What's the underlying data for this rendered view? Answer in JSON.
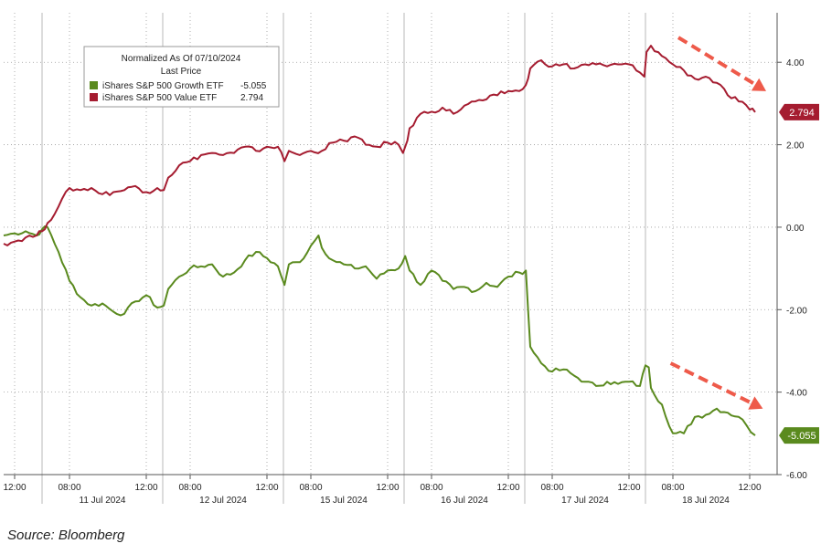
{
  "source": "Source: Bloomberg",
  "chart_data": {
    "type": "line",
    "legend": {
      "title_line1": "Normalized As Of 07/10/2024",
      "title_line2": "Last Price",
      "placement": "top-left"
    },
    "y_axis": {
      "side": "right",
      "ylim": [
        -6,
        5.2
      ],
      "ticks": [
        4,
        2,
        0,
        -2,
        -4,
        -6
      ],
      "tick_labels": [
        "4.00",
        "2.00",
        "0.00",
        "-2.00",
        "-4.00",
        "-6.00"
      ]
    },
    "x_axis": {
      "xlim": [
        0,
        70.5
      ],
      "ticks": [
        {
          "x": 1,
          "label": "12:00"
        },
        {
          "x": 6,
          "label": "08:00"
        },
        {
          "x": 13,
          "label": "12:00"
        },
        {
          "x": 17,
          "label": "08:00"
        },
        {
          "x": 24,
          "label": "12:00"
        },
        {
          "x": 28,
          "label": "08:00"
        },
        {
          "x": 35,
          "label": "12:00"
        },
        {
          "x": 39,
          "label": "08:00"
        },
        {
          "x": 46,
          "label": "12:00"
        },
        {
          "x": 50,
          "label": "08:00"
        },
        {
          "x": 57,
          "label": "12:00"
        },
        {
          "x": 61,
          "label": "08:00"
        },
        {
          "x": 68,
          "label": "12:00"
        }
      ],
      "day_labels": [
        {
          "x": 9,
          "label": "11 Jul 2024"
        },
        {
          "x": 20,
          "label": "12 Jul 2024"
        },
        {
          "x": 31,
          "label": "15 Jul 2024"
        },
        {
          "x": 42,
          "label": "16 Jul 2024"
        },
        {
          "x": 53,
          "label": "17 Jul 2024"
        },
        {
          "x": 64,
          "label": "18 Jul 2024"
        }
      ],
      "day_boundaries": [
        3.5,
        14.5,
        25.5,
        36.5,
        47.5,
        58.5
      ]
    },
    "series": [
      {
        "name": "iShares S&P 500 Growth ETF",
        "last_value": "-5.055",
        "color": "#5a8a1e",
        "x": [
          0,
          1,
          2,
          3,
          3.5,
          4,
          5,
          6,
          7,
          8,
          9,
          10,
          11,
          12,
          13,
          14,
          14.6,
          15,
          16,
          17,
          18,
          19,
          20,
          21,
          22,
          23,
          24,
          25,
          25.6,
          26,
          27,
          28,
          28.7,
          29,
          30,
          31,
          32,
          33,
          34,
          35,
          36,
          36.6,
          37,
          38,
          39,
          40,
          41,
          42,
          43,
          44,
          45,
          46,
          47,
          47.6,
          47.8,
          48,
          49,
          50,
          51,
          52,
          53,
          54,
          55,
          56,
          57,
          58,
          58.5,
          58.8,
          59,
          60,
          61,
          62,
          63,
          64,
          65,
          66,
          67,
          67.7,
          68.5
        ],
        "y": [
          -0.2,
          -0.15,
          -0.1,
          -0.2,
          -0.05,
          0.0,
          -0.6,
          -1.3,
          -1.7,
          -1.9,
          -1.85,
          -2.05,
          -2.1,
          -1.8,
          -1.65,
          -1.95,
          -1.9,
          -1.5,
          -1.2,
          -1.0,
          -0.95,
          -0.9,
          -1.2,
          -1.1,
          -0.8,
          -0.6,
          -0.75,
          -0.95,
          -1.4,
          -0.9,
          -0.85,
          -0.45,
          -0.2,
          -0.5,
          -0.8,
          -0.9,
          -1.0,
          -0.95,
          -1.25,
          -1.05,
          -1.0,
          -0.7,
          -1.05,
          -1.4,
          -1.05,
          -1.3,
          -1.5,
          -1.45,
          -1.55,
          -1.35,
          -1.45,
          -1.2,
          -1.1,
          -1.05,
          -2.0,
          -2.9,
          -3.3,
          -3.5,
          -3.45,
          -3.6,
          -3.75,
          -3.85,
          -3.75,
          -3.8,
          -3.75,
          -3.85,
          -3.35,
          -3.4,
          -3.9,
          -4.3,
          -5.0,
          -5.0,
          -4.6,
          -4.55,
          -4.4,
          -4.5,
          -4.6,
          -4.8,
          -5.05
        ]
      },
      {
        "name": "iShares S&P 500 Value ETF",
        "last_value": "2.794",
        "color": "#a51c30",
        "x": [
          0,
          1,
          2,
          3,
          3.5,
          4,
          5,
          6,
          7,
          8,
          9,
          10,
          11,
          12,
          13,
          14,
          14.6,
          15,
          16,
          17,
          18,
          19,
          20,
          21,
          22,
          23,
          24,
          25,
          25.6,
          26,
          27,
          28,
          29,
          30,
          31,
          32,
          33,
          34,
          35,
          36,
          36.4,
          36.8,
          37,
          38,
          39,
          40,
          41,
          42,
          43,
          44,
          45,
          46,
          47,
          47.6,
          47.8,
          48,
          49,
          50,
          51,
          52,
          53,
          54,
          55,
          56,
          57,
          58,
          58.4,
          58.6,
          59,
          60,
          61,
          62,
          63,
          64,
          65,
          66,
          67,
          68,
          68.5
        ],
        "y": [
          -0.4,
          -0.35,
          -0.25,
          -0.2,
          -0.1,
          0.1,
          0.5,
          0.95,
          0.9,
          0.95,
          0.8,
          0.85,
          0.9,
          1.0,
          0.85,
          0.95,
          0.9,
          1.2,
          1.5,
          1.6,
          1.75,
          1.8,
          1.75,
          1.8,
          1.95,
          1.85,
          1.95,
          1.95,
          1.6,
          1.85,
          1.75,
          1.85,
          1.85,
          2.05,
          2.1,
          2.2,
          2.0,
          1.95,
          2.05,
          2.0,
          1.8,
          2.1,
          2.4,
          2.75,
          2.8,
          2.9,
          2.75,
          2.95,
          3.05,
          3.1,
          3.2,
          3.3,
          3.3,
          3.45,
          3.6,
          3.85,
          4.05,
          3.9,
          3.95,
          3.85,
          3.95,
          3.95,
          3.9,
          3.95,
          3.95,
          3.75,
          3.65,
          4.25,
          4.4,
          4.15,
          3.95,
          3.8,
          3.6,
          3.65,
          3.5,
          3.2,
          3.05,
          2.85,
          2.79
        ]
      }
    ],
    "annotations": [
      {
        "type": "arrow",
        "from": [
          61.5,
          4.6
        ],
        "to": [
          69.5,
          3.3
        ]
      },
      {
        "type": "arrow",
        "from": [
          60.8,
          -3.3
        ],
        "to": [
          69.2,
          -4.4
        ]
      }
    ]
  }
}
